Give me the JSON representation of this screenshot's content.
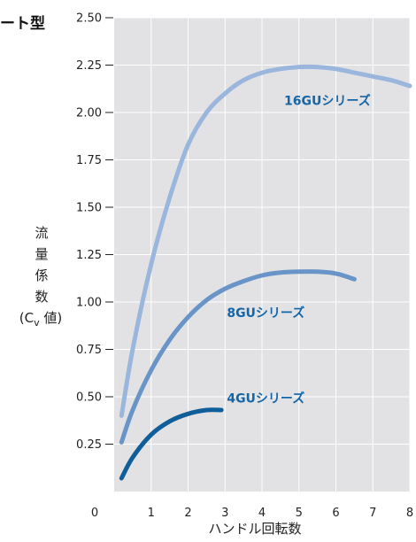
{
  "chart_data": {
    "type": "line",
    "title": "ート型",
    "xlabel": "ハンドル回転数",
    "ylabel_chars": [
      "流",
      "量",
      "係",
      "数"
    ],
    "ylabel_unit": {
      "open": "(C",
      "sub": "v",
      "close": " 値)"
    },
    "xlim": [
      0,
      8
    ],
    "ylim": [
      0,
      2.5
    ],
    "x_ticks": [
      "0",
      "1",
      "2",
      "3",
      "4",
      "5",
      "6",
      "7",
      "8"
    ],
    "y_ticks": [
      "0.25",
      "0.50",
      "0.75",
      "1.00",
      "1.25",
      "1.50",
      "1.75",
      "2.00",
      "2.25",
      "2.50"
    ],
    "grid": true,
    "plot_background": "#e2e2e4",
    "series": [
      {
        "name": "16GUシリーズ",
        "color": "#9ab6dc",
        "label_color": "#1466a8",
        "label_at": [
          4.6,
          2.04
        ],
        "points": [
          [
            0.2,
            0.4
          ],
          [
            0.5,
            0.75
          ],
          [
            1.0,
            1.2
          ],
          [
            1.5,
            1.55
          ],
          [
            2.0,
            1.83
          ],
          [
            2.5,
            2.0
          ],
          [
            3.0,
            2.1
          ],
          [
            3.5,
            2.17
          ],
          [
            4.0,
            2.21
          ],
          [
            4.5,
            2.23
          ],
          [
            5.0,
            2.24
          ],
          [
            5.5,
            2.24
          ],
          [
            6.0,
            2.23
          ],
          [
            6.5,
            2.21
          ],
          [
            7.0,
            2.19
          ],
          [
            7.5,
            2.17
          ],
          [
            8.0,
            2.14
          ]
        ]
      },
      {
        "name": "8GUシリーズ",
        "color": "#6994c8",
        "label_color": "#1466a8",
        "label_at": [
          3.05,
          0.92
        ],
        "points": [
          [
            0.2,
            0.26
          ],
          [
            0.5,
            0.43
          ],
          [
            1.0,
            0.64
          ],
          [
            1.5,
            0.8
          ],
          [
            2.0,
            0.92
          ],
          [
            2.5,
            1.01
          ],
          [
            3.0,
            1.07
          ],
          [
            3.5,
            1.11
          ],
          [
            4.0,
            1.14
          ],
          [
            4.5,
            1.155
          ],
          [
            5.0,
            1.16
          ],
          [
            5.5,
            1.16
          ],
          [
            6.0,
            1.15
          ],
          [
            6.5,
            1.12
          ]
        ]
      },
      {
        "name": "4GUシリーズ",
        "color": "#0f5e9a",
        "label_color": "#1466a8",
        "label_at": [
          3.05,
          0.47
        ],
        "points": [
          [
            0.2,
            0.07
          ],
          [
            0.5,
            0.18
          ],
          [
            1.0,
            0.3
          ],
          [
            1.5,
            0.37
          ],
          [
            2.0,
            0.41
          ],
          [
            2.5,
            0.43
          ],
          [
            2.9,
            0.43
          ]
        ]
      }
    ]
  }
}
